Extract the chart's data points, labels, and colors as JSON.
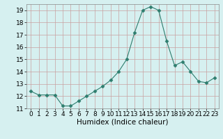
{
  "x": [
    0,
    1,
    2,
    3,
    4,
    5,
    6,
    7,
    8,
    9,
    10,
    11,
    12,
    13,
    14,
    15,
    16,
    17,
    18,
    19,
    20,
    21,
    22,
    23
  ],
  "y": [
    12.4,
    12.1,
    12.1,
    12.1,
    11.2,
    11.2,
    11.6,
    12.0,
    12.4,
    12.8,
    13.3,
    14.0,
    15.0,
    17.2,
    19.0,
    19.3,
    19.0,
    16.5,
    14.5,
    14.8,
    14.0,
    13.2,
    13.1,
    13.5
  ],
  "line_color": "#2e7d6e",
  "marker": "D",
  "marker_size": 2.5,
  "bg_color": "#d6f0f0",
  "grid_major_color": "#c8a0a0",
  "grid_minor_color": "#b8d8d8",
  "xlabel": "Humidex (Indice chaleur)",
  "xlim": [
    -0.5,
    23.5
  ],
  "ylim": [
    11,
    19.5
  ],
  "yticks": [
    11,
    12,
    13,
    14,
    15,
    16,
    17,
    18,
    19
  ],
  "xticks": [
    0,
    1,
    2,
    3,
    4,
    5,
    6,
    7,
    8,
    9,
    10,
    11,
    12,
    13,
    14,
    15,
    16,
    17,
    18,
    19,
    20,
    21,
    22,
    23
  ],
  "tick_fontsize": 6.5,
  "label_fontsize": 7.5
}
